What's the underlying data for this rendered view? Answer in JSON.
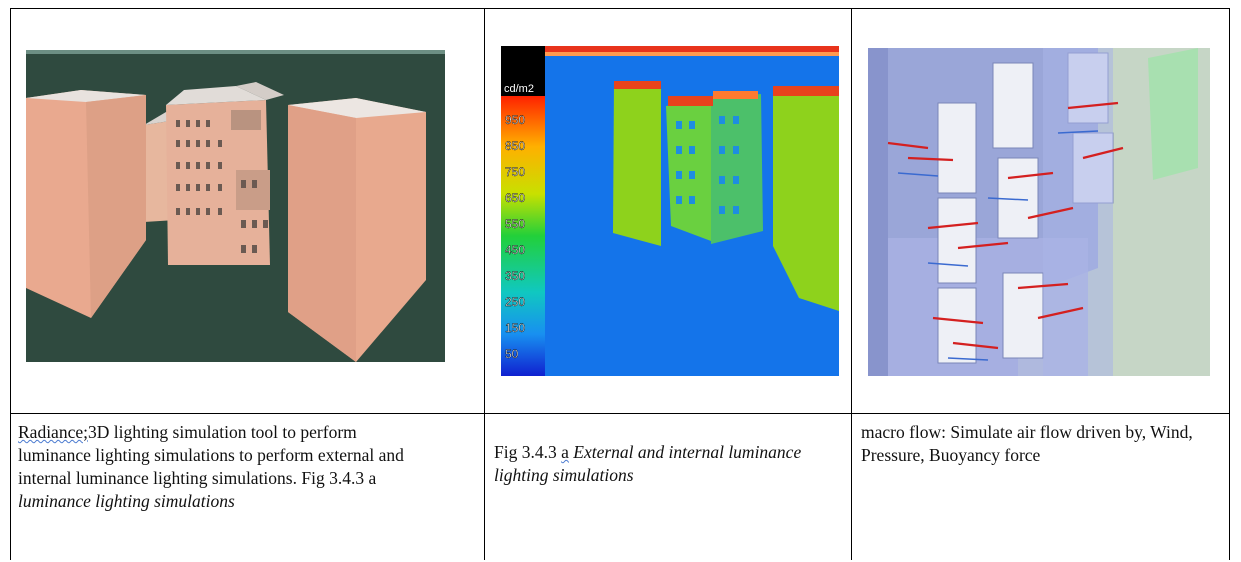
{
  "cells": [
    {
      "image": {
        "icon": "rendered-3d-buildings"
      },
      "caption": {
        "radiance": "Radiance;",
        "rest": "3D  lighting  simulation  tool to perform",
        "line2": "luminance lighting simulations to perform external and",
        "line3a": "internal luminance lighting simulations.  Fig 3.4.3 a",
        "line4": "luminance lighting simulations"
      }
    },
    {
      "image": {
        "icon": "false-color-luminance-render",
        "scale_unit": "cd/m2",
        "scale_ticks": [
          "950",
          "850",
          "750",
          "650",
          "550",
          "450",
          "350",
          "250",
          "150",
          "50"
        ],
        "colors": {
          "sky": "#1a7ef0",
          "ground": "#1474ea",
          "building": "#8ed21c",
          "roof": "#e8431c"
        }
      },
      "caption": {
        "fig": "Fig 3.4.3",
        "a": "a",
        "line1_italic": "External and internal luminance",
        "line2_italic": "lighting simulations"
      }
    },
    {
      "image": {
        "icon": "airflow-simulation-render"
      },
      "caption": {
        "line1": "macro flow: Simulate air flow driven by, Wind,",
        "line2": "Pressure, Buoyancy force"
      }
    }
  ]
}
